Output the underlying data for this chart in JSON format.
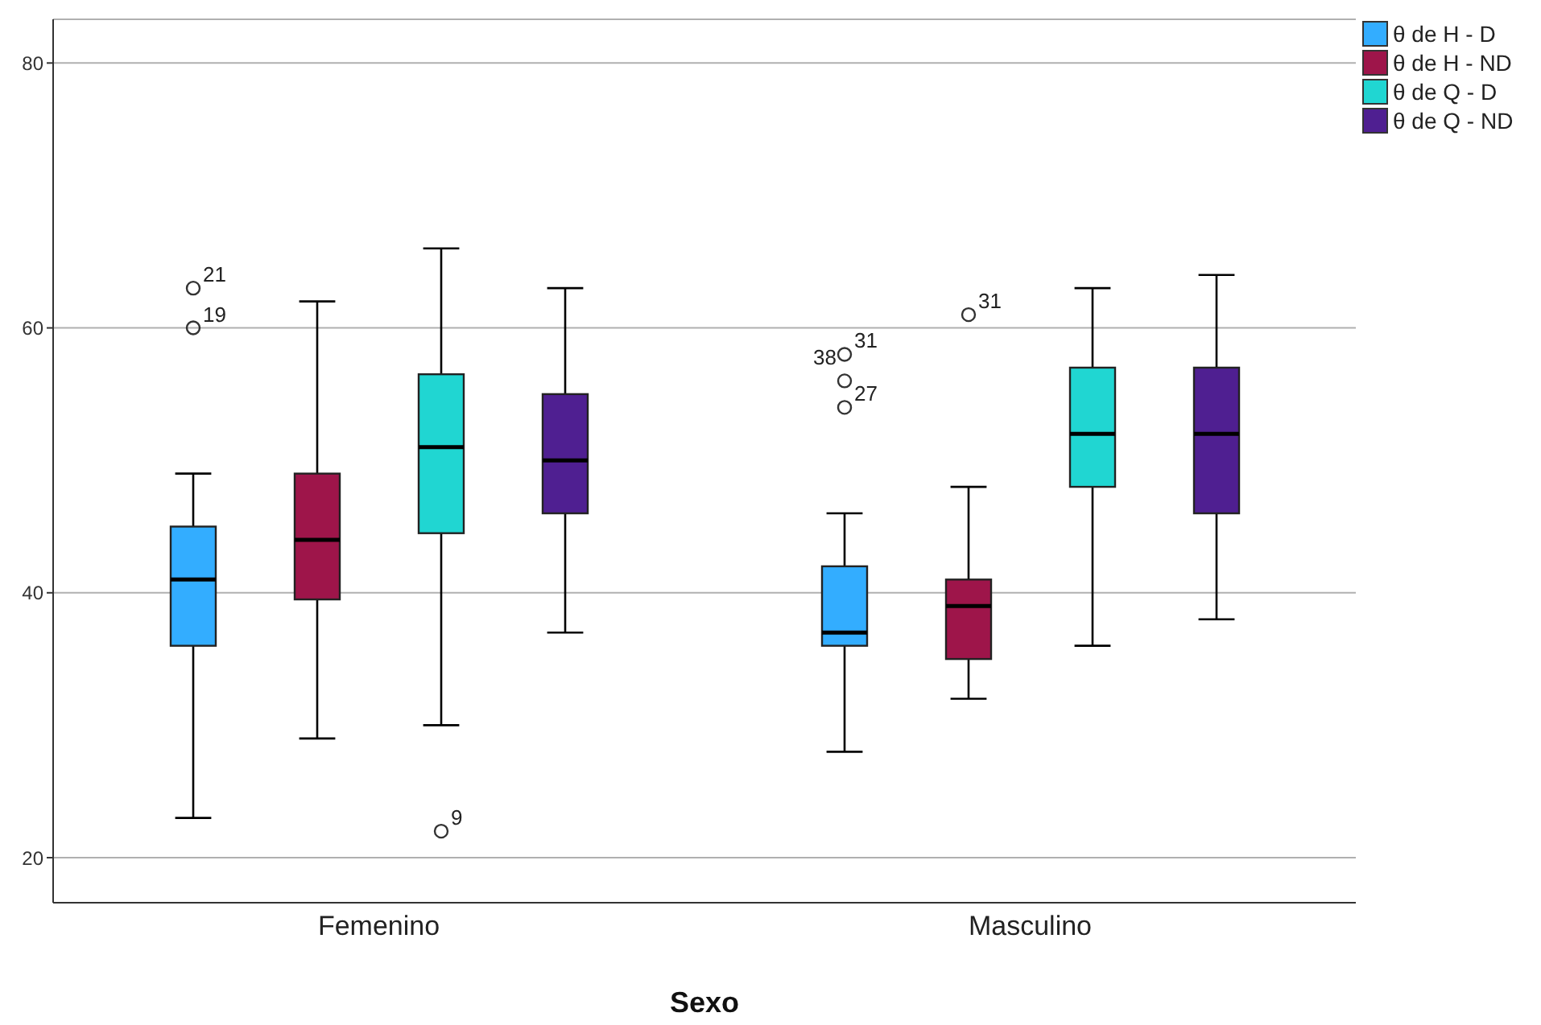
{
  "chart_data": {
    "type": "box",
    "xlabel": "Sexo",
    "categories": [
      "Femenino",
      "Masculino"
    ],
    "series": [
      {
        "name": "θ de H - D",
        "color": "#33adff",
        "boxes": [
          {
            "low": 23,
            "q1": 36,
            "median": 41,
            "q3": 45,
            "high": 49,
            "outliers": [
              60,
              63
            ]
          },
          {
            "low": 28,
            "q1": 36,
            "median": 37,
            "q3": 42,
            "high": 46,
            "outliers": [
              54,
              56,
              58
            ]
          }
        ]
      },
      {
        "name": "θ de H - ND",
        "color": "#9e154a",
        "boxes": [
          {
            "low": 29,
            "q1": 39.5,
            "median": 44,
            "q3": 49,
            "high": 62
          },
          {
            "low": 32,
            "q1": 35,
            "median": 39,
            "q3": 41,
            "high": 48,
            "outliers": [
              61
            ]
          }
        ]
      },
      {
        "name": "θ de Q - D",
        "color": "#20d6d2",
        "boxes": [
          {
            "low": 30,
            "q1": 44.5,
            "median": 51,
            "q3": 56.5,
            "high": 66,
            "outliers": [
              22
            ]
          },
          {
            "low": 36,
            "q1": 48,
            "median": 52,
            "q3": 57,
            "high": 63
          }
        ]
      },
      {
        "name": "θ de Q - ND",
        "color": "#4f1f91",
        "boxes": [
          {
            "low": 37,
            "q1": 46,
            "median": 50,
            "q3": 55,
            "high": 63
          },
          {
            "low": 38,
            "q1": 46,
            "median": 52,
            "q3": 57,
            "high": 64
          }
        ]
      }
    ],
    "ylim": [
      16.6,
      83.3
    ],
    "yticks": [
      20,
      40,
      60,
      80
    ],
    "grid": "y",
    "legend": "top right",
    "annotations": [
      "21",
      "19",
      "9",
      "31",
      "38",
      "27",
      "31"
    ]
  }
}
